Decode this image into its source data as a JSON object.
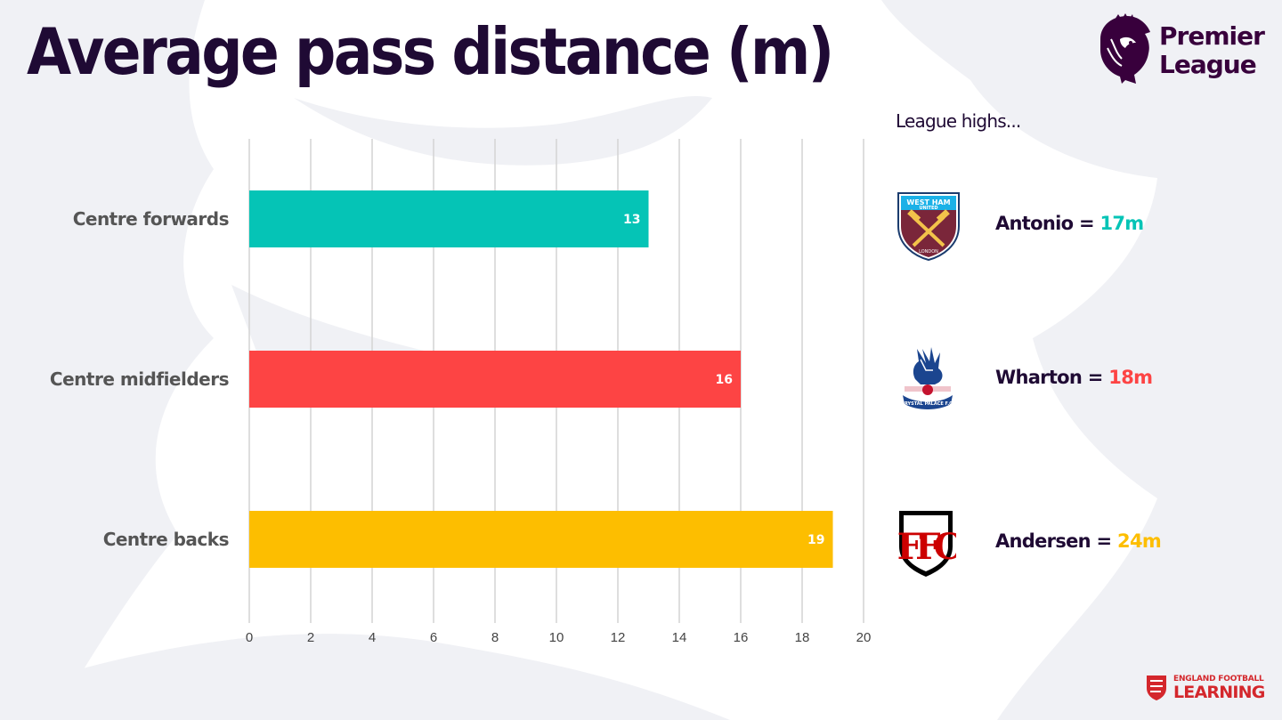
{
  "title": "Average pass distance (m)",
  "brand": {
    "word1": "Premier",
    "word2": "League",
    "purple": "#38003c"
  },
  "chart_data": {
    "type": "bar",
    "orientation": "horizontal",
    "categories": [
      "Centre forwards",
      "Centre midfielders",
      "Centre backs"
    ],
    "values": [
      13,
      16,
      19
    ],
    "data_labels": [
      "13",
      "16",
      "19"
    ],
    "colors": [
      "#05c4b6",
      "#fd4444",
      "#fdbe00"
    ],
    "xlim": [
      0,
      20
    ],
    "xticks": [
      0,
      2,
      4,
      6,
      8,
      10,
      12,
      14,
      16,
      18,
      20
    ],
    "xtick_labels": [
      "0",
      "2",
      "4",
      "6",
      "8",
      "10",
      "12",
      "14",
      "16",
      "18",
      "20"
    ],
    "grid": "vertical",
    "legend": "none"
  },
  "league_highs": {
    "heading": "League highs...",
    "entries": [
      {
        "badge": "west-ham-badge",
        "player": "Antonio = ",
        "value": "17m",
        "color": "#05c4b6",
        "badge_text_top": "WEST HAM",
        "badge_text_mid": "UNITED",
        "badge_text_bottom": "LONDON"
      },
      {
        "badge": "crystal-palace-badge",
        "player": "Wharton = ",
        "value": "18m",
        "color": "#fd4444",
        "badge_text_bottom": "CRYSTAL PALACE F.C."
      },
      {
        "badge": "fulham-badge",
        "player": "Andersen = ",
        "value": "24m",
        "color": "#fdbe00",
        "badge_text": "FFC"
      }
    ]
  },
  "footer_logo": {
    "line1": "ENGLAND FOOTBALL",
    "line2": "LEARNING",
    "color": "#d4272c"
  }
}
